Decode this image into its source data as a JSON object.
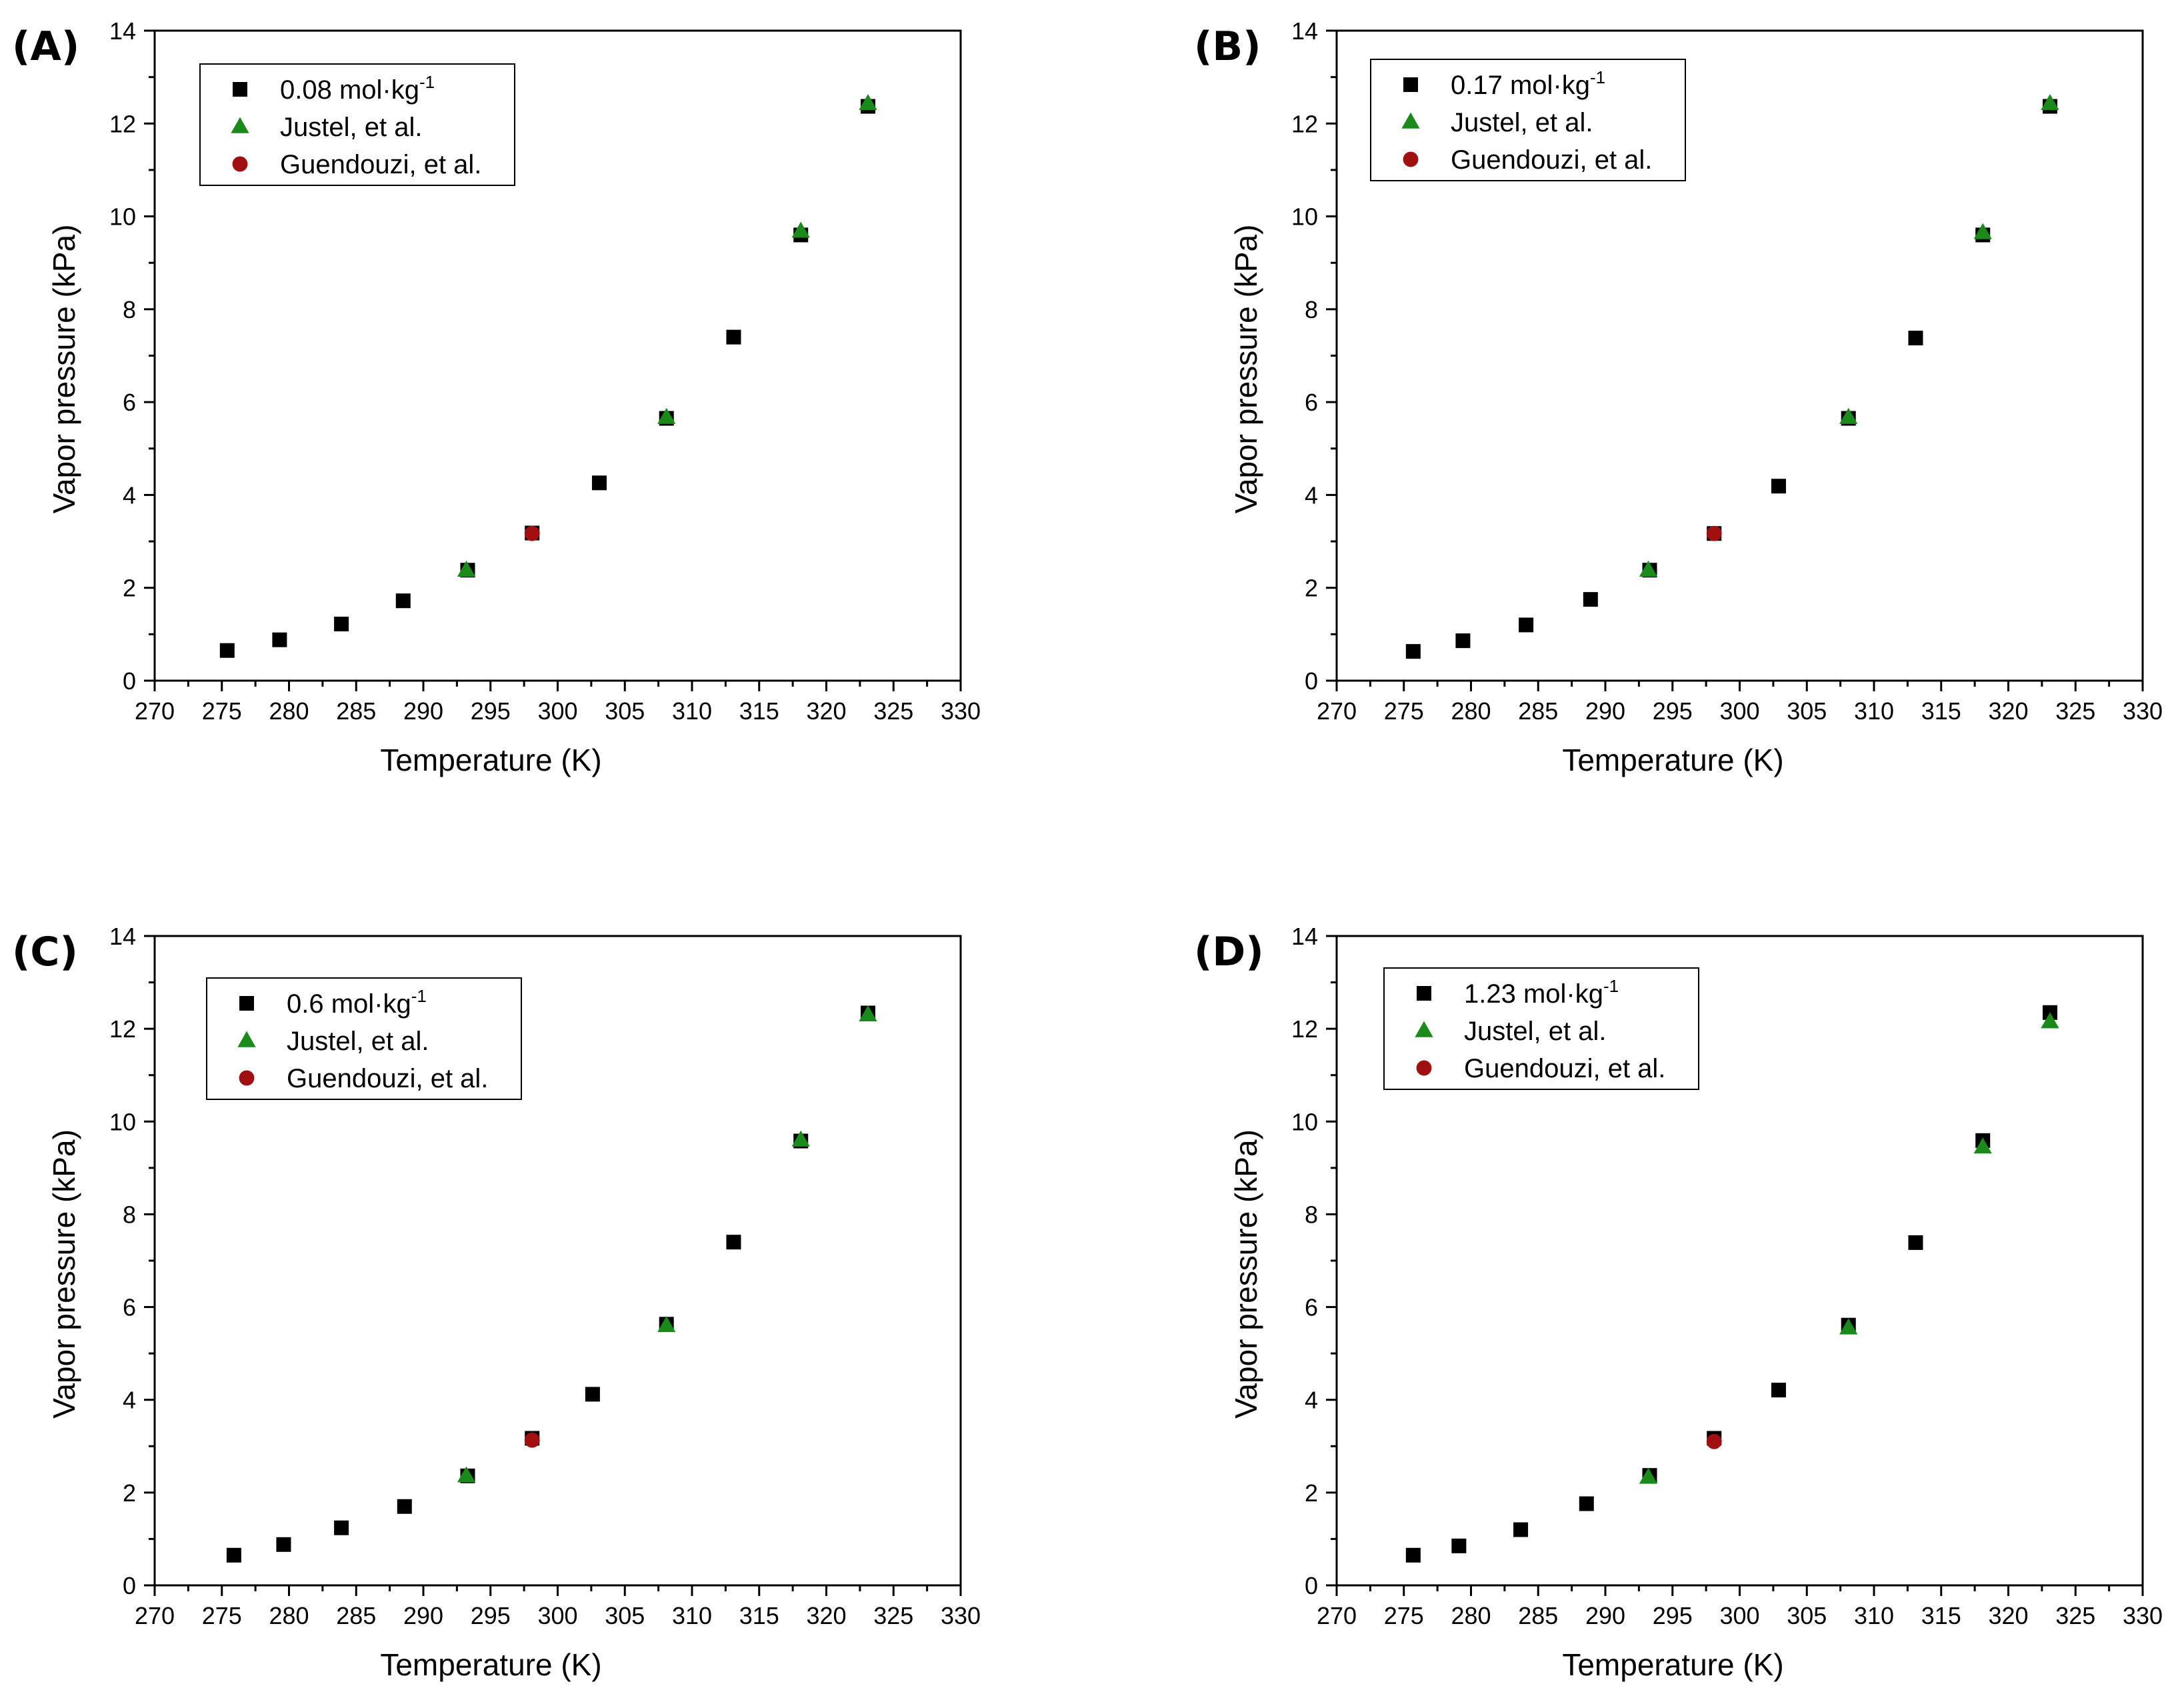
{
  "figure": {
    "background": "#ffffff"
  },
  "colors": {
    "measured": "#000000",
    "justel": "#1a8a1a",
    "guendouzi": "#a01010"
  },
  "chart_data": [
    {
      "id": "A",
      "panel_label": "(A)",
      "type": "scatter",
      "xlabel": "Temperature (K)",
      "ylabel": "Vapor pressure (kPa)",
      "xlim": [
        270,
        330
      ],
      "ylim": [
        0,
        14
      ],
      "xticks": [
        270,
        275,
        280,
        285,
        290,
        295,
        300,
        305,
        310,
        315,
        320,
        325,
        330
      ],
      "yticks": [
        0,
        2,
        4,
        6,
        8,
        10,
        12,
        14
      ],
      "legend_position": "top-left",
      "series": [
        {
          "name": "0.08 mol·kg",
          "name_sup": "-1",
          "marker": "square",
          "color": "#000000",
          "x": [
            275.4,
            279.3,
            283.9,
            288.5,
            293.3,
            298.1,
            303.1,
            308.1,
            313.1,
            318.1,
            323.1
          ],
          "y": [
            0.65,
            0.88,
            1.22,
            1.72,
            2.38,
            3.18,
            4.26,
            5.65,
            7.4,
            9.6,
            12.37
          ]
        },
        {
          "name": "Justel, et al.",
          "marker": "triangle",
          "color": "#1a8a1a",
          "x": [
            293.2,
            308.1,
            318.1,
            323.1
          ],
          "y": [
            2.38,
            5.67,
            9.68,
            12.43
          ]
        },
        {
          "name": "Guendouzi, et al.",
          "marker": "circle",
          "color": "#a01010",
          "x": [
            298.1
          ],
          "y": [
            3.17
          ]
        }
      ]
    },
    {
      "id": "B",
      "panel_label": "(B)",
      "type": "scatter",
      "xlabel": "Temperature (K)",
      "ylabel": "Vapor pressure (kPa)",
      "xlim": [
        270,
        330
      ],
      "ylim": [
        0,
        14
      ],
      "xticks": [
        270,
        275,
        280,
        285,
        290,
        295,
        300,
        305,
        310,
        315,
        320,
        325,
        330
      ],
      "yticks": [
        0,
        2,
        4,
        6,
        8,
        10,
        12,
        14
      ],
      "legend_position": "top-left",
      "series": [
        {
          "name": "0.17 mol·kg",
          "name_sup": "-1",
          "marker": "square",
          "color": "#000000",
          "x": [
            275.7,
            279.4,
            284.1,
            288.9,
            293.3,
            298.1,
            302.9,
            308.1,
            313.1,
            318.1,
            323.1
          ],
          "y": [
            0.63,
            0.86,
            1.2,
            1.75,
            2.38,
            3.17,
            4.19,
            5.65,
            7.38,
            9.6,
            12.37
          ]
        },
        {
          "name": "Justel, et al.",
          "marker": "triangle",
          "color": "#1a8a1a",
          "x": [
            293.2,
            308.1,
            318.1,
            323.1
          ],
          "y": [
            2.38,
            5.67,
            9.65,
            12.43
          ]
        },
        {
          "name": "Guendouzi, et al.",
          "marker": "circle",
          "color": "#a01010",
          "x": [
            298.1
          ],
          "y": [
            3.17
          ]
        }
      ]
    },
    {
      "id": "C",
      "panel_label": "(C)",
      "type": "scatter",
      "xlabel": "Temperature (K)",
      "ylabel": "Vapor pressure (kPa)",
      "xlim": [
        270,
        330
      ],
      "ylim": [
        0,
        14
      ],
      "xticks": [
        270,
        275,
        280,
        285,
        290,
        295,
        300,
        305,
        310,
        315,
        320,
        325,
        330
      ],
      "yticks": [
        0,
        2,
        4,
        6,
        8,
        10,
        12,
        14
      ],
      "legend_position": "top-left",
      "series": [
        {
          "name": "0.6 mol·kg",
          "name_sup": "-1",
          "marker": "square",
          "color": "#000000",
          "x": [
            275.9,
            279.6,
            283.9,
            288.6,
            293.3,
            298.1,
            302.6,
            308.1,
            313.1,
            318.1,
            323.1
          ],
          "y": [
            0.65,
            0.88,
            1.24,
            1.7,
            2.36,
            3.17,
            4.12,
            5.63,
            7.4,
            9.58,
            12.34
          ]
        },
        {
          "name": "Justel, et al.",
          "marker": "triangle",
          "color": "#1a8a1a",
          "x": [
            293.2,
            308.1,
            318.1,
            323.1
          ],
          "y": [
            2.36,
            5.6,
            9.6,
            12.3
          ]
        },
        {
          "name": "Guendouzi, et al.",
          "marker": "circle",
          "color": "#a01010",
          "x": [
            298.1
          ],
          "y": [
            3.13
          ]
        }
      ]
    },
    {
      "id": "D",
      "panel_label": "(D)",
      "type": "scatter",
      "xlabel": "Temperature (K)",
      "ylabel": "Vapor pressure (kPa)",
      "xlim": [
        270,
        330
      ],
      "ylim": [
        0,
        14
      ],
      "xticks": [
        270,
        275,
        280,
        285,
        290,
        295,
        300,
        305,
        310,
        315,
        320,
        325,
        330
      ],
      "yticks": [
        0,
        2,
        4,
        6,
        8,
        10,
        12,
        14
      ],
      "legend_position": "top-left",
      "series": [
        {
          "name": "1.23 mol·kg",
          "name_sup": "-1",
          "marker": "square",
          "color": "#000000",
          "x": [
            275.7,
            279.1,
            283.7,
            288.6,
            293.3,
            298.1,
            302.9,
            308.1,
            313.1,
            318.1,
            323.1
          ],
          "y": [
            0.65,
            0.85,
            1.2,
            1.76,
            2.37,
            3.17,
            4.21,
            5.61,
            7.39,
            9.59,
            12.35
          ]
        },
        {
          "name": "Justel, et al.",
          "marker": "triangle",
          "color": "#1a8a1a",
          "x": [
            293.2,
            308.1,
            318.1,
            323.1
          ],
          "y": [
            2.33,
            5.55,
            9.45,
            12.15
          ]
        },
        {
          "name": "Guendouzi, et al.",
          "marker": "circle",
          "color": "#a01010",
          "x": [
            298.1
          ],
          "y": [
            3.1
          ]
        }
      ]
    }
  ]
}
